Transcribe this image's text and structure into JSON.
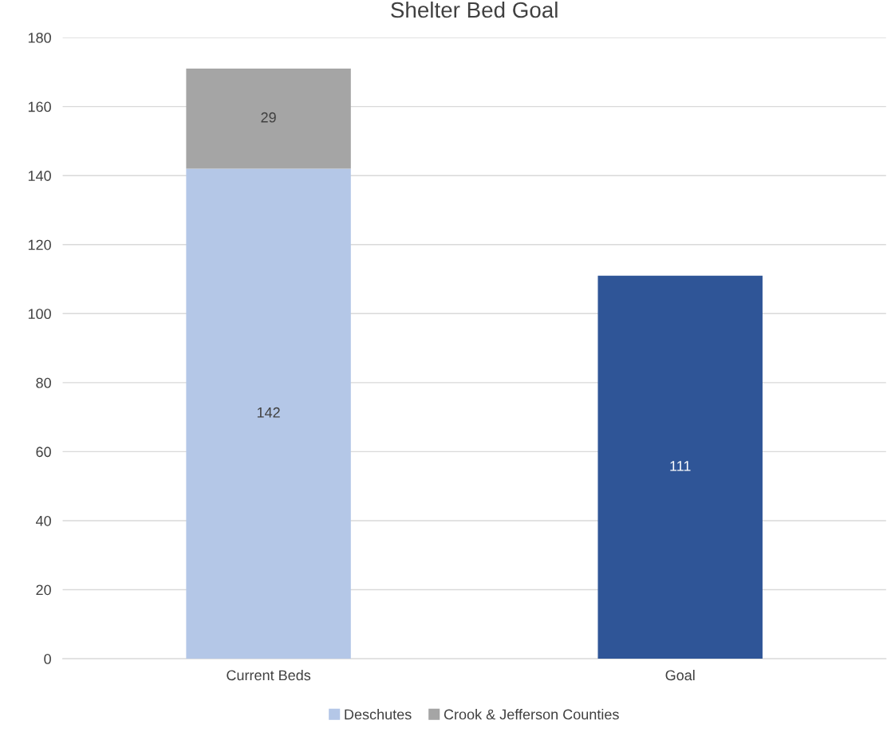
{
  "chart_data": {
    "type": "bar",
    "title": "Shelter Bed Goal",
    "stacked": true,
    "categories": [
      "Current Beds",
      "Goal"
    ],
    "series": [
      {
        "name": "Deschutes",
        "color": "#b4c7e7",
        "values": [
          142,
          null
        ]
      },
      {
        "name": "Crook & Jefferson Counties",
        "color": "#a5a5a5",
        "values": [
          29,
          null
        ]
      },
      {
        "color": "#2f5597",
        "values": [
          null,
          111
        ]
      }
    ],
    "ylim": [
      0,
      180
    ],
    "yticks": [
      0,
      20,
      40,
      60,
      80,
      100,
      120,
      140,
      160,
      180
    ],
    "grid": "y",
    "legend": "bottom",
    "data_labels": true
  }
}
